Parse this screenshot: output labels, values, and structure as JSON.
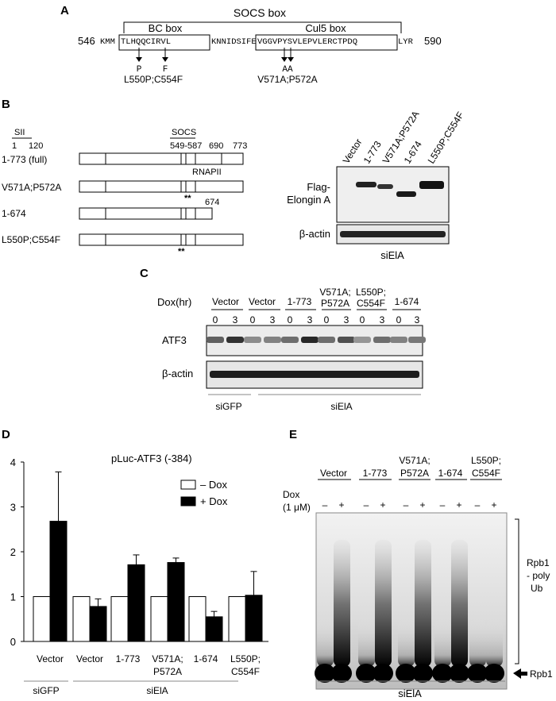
{
  "panels": {
    "A": {
      "label": "A",
      "socs_box": "SOCS box",
      "bc_box": "BC box",
      "cul5_box": "Cul5 box",
      "start": "546",
      "end": "590",
      "seq_pre": "KMM",
      "seq_bc": "TLHQQCIRVL",
      "seq_mid": "KNNIDSIFE",
      "seq_cul5": "VGGVPYSVLEPVLERCTPDQ",
      "seq_post": "LYR",
      "mut_p": "P",
      "mut_f": "F",
      "mut_aa": "AA",
      "mut_label1": "L550P;C554F",
      "mut_label2": "V571A;P572A"
    },
    "B": {
      "label": "B",
      "sii": "SII",
      "socs": "SOCS",
      "n1": "1",
      "n120": "120",
      "n549": "549-587",
      "n690": "690",
      "n773": "773",
      "rnapii": "RNAPII",
      "n674": "674",
      "constructs": [
        "1-773 (full)",
        "V571A;P572A",
        "1-674",
        "L550P;C554F"
      ],
      "stars": "**",
      "lanes": [
        "Vector",
        "1-773",
        "V571A;P572A",
        "1-674",
        "L550P;C554F"
      ],
      "blot1": "Flag-",
      "blot1b": "Elongin A",
      "blot2": "β-actin",
      "condition": "siElA"
    },
    "C": {
      "label": "C",
      "dox": "Dox(hr)",
      "groups": [
        "Vector",
        "Vector",
        "1-773",
        "V571A;",
        "L550P;",
        "1-674"
      ],
      "groups2": [
        "",
        "",
        "",
        "P572A",
        "C554F",
        ""
      ],
      "times": [
        "0",
        "3",
        "0",
        "3",
        "0",
        "3",
        "0",
        "3",
        "0",
        "3",
        "0",
        "3"
      ],
      "blot1": "ATF3",
      "blot2": "β-actin",
      "cond1": "siGFP",
      "cond2": "siElA"
    },
    "D": {
      "label": "D",
      "title": "pLuc-ATF3 (-384)",
      "legend_minus": "– Dox",
      "legend_plus": "+ Dox",
      "cond1": "siGFP",
      "cond2": "siElA"
    },
    "E": {
      "label": "E",
      "groups": [
        "Vector",
        "1-773",
        "V571A;",
        "1-674",
        "L550P;"
      ],
      "groups2": [
        "",
        "",
        "P572A",
        "",
        "C554F"
      ],
      "dox": "Dox",
      "dox2": "(1 μM)",
      "minus": "–",
      "plus": "+",
      "rpb1_poly": "Rpb1",
      "rpb1_poly2": "- poly",
      "rpb1_poly3": "Ub",
      "rpb1": "Rpb1",
      "condition": "siElA"
    }
  },
  "chart_data": {
    "type": "bar",
    "title": "pLuc-ATF3 (-384)",
    "categories": [
      "Vector",
      "Vector",
      "1-773",
      "V571A;P572A",
      "1-674",
      "L550P;C554F"
    ],
    "series": [
      {
        "name": "– Dox",
        "values": [
          1,
          1,
          1,
          1,
          1,
          1
        ],
        "color": "#ffffff"
      },
      {
        "name": "+ Dox",
        "values": [
          2.68,
          0.78,
          1.71,
          1.76,
          0.55,
          1.03
        ],
        "errors": [
          1.1,
          0.17,
          0.22,
          0.1,
          0.12,
          0.53
        ],
        "color": "#000000"
      }
    ],
    "ylim": [
      0,
      4
    ],
    "yticks": [
      0,
      1,
      2,
      3,
      4
    ],
    "legend": "top-right"
  }
}
